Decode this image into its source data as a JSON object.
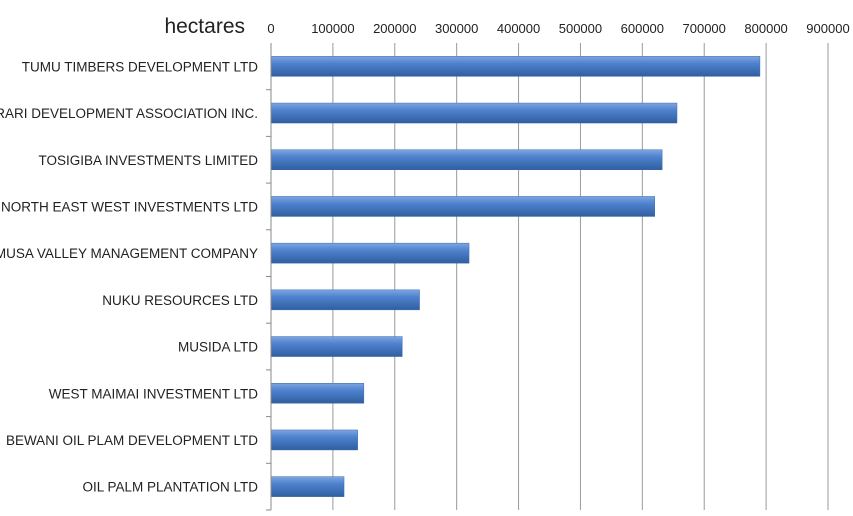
{
  "chart_data": {
    "type": "bar",
    "orientation": "horizontal",
    "xlabel": "hectares",
    "xlim": [
      0,
      900000
    ],
    "x_ticks": [
      0,
      100000,
      200000,
      300000,
      400000,
      500000,
      600000,
      700000,
      800000,
      900000
    ],
    "x_tick_labels": [
      "0",
      "100000",
      "200000",
      "300000",
      "400000",
      "500000",
      "600000",
      "700000",
      "800000",
      "900000"
    ],
    "grid": true,
    "axis_position": "top",
    "bar_color": "#4a7dc9",
    "categories": [
      "TUMU TIMBERS DEVELOPMENT LTD",
      "PURARI DEVELOPMENT ASSOCIATION INC.",
      "TOSIGIBA INVESTMENTS LIMITED",
      "NORTH EAST WEST INVESTMENTS LTD",
      "MUSA VALLEY MANAGEMENT COMPANY",
      "NUKU RESOURCES LTD",
      "MUSIDA LTD",
      "WEST MAIMAI INVESTMENT LTD",
      "BEWANI OIL PLAM DEVELOPMENT LTD",
      "OIL PALM PLANTATION LTD"
    ],
    "values": [
      790000,
      656000,
      632000,
      620000,
      320000,
      240000,
      212000,
      150000,
      140000,
      118000
    ]
  }
}
